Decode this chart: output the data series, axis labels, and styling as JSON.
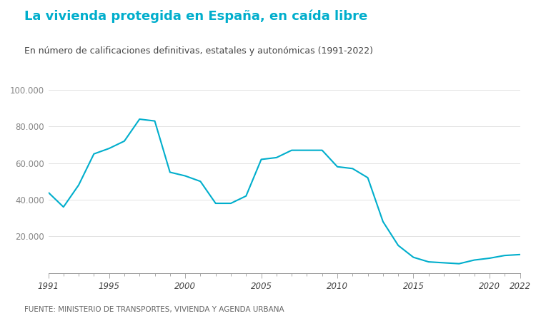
{
  "title": "La vivienda protegida en España, en caída libre",
  "subtitle": "En número de calificaciones definitivas, estatales y autonómicas (1991-2022)",
  "source": "FUENTE: MINISTERIO DE TRANSPORTES, VIVIENDA Y AGENDA URBANA",
  "title_color": "#00AECC",
  "subtitle_color": "#444444",
  "source_color": "#666666",
  "line_color": "#00AECC",
  "background_color": "#FFFFFF",
  "years": [
    1991,
    1992,
    1993,
    1994,
    1995,
    1996,
    1997,
    1998,
    1999,
    2000,
    2001,
    2002,
    2003,
    2004,
    2005,
    2006,
    2007,
    2008,
    2009,
    2010,
    2011,
    2012,
    2013,
    2014,
    2015,
    2016,
    2017,
    2018,
    2019,
    2020,
    2021,
    2022
  ],
  "values": [
    44000,
    36000,
    48000,
    65000,
    68000,
    72000,
    84000,
    83000,
    55000,
    53000,
    50000,
    38000,
    38000,
    42000,
    62000,
    63000,
    67000,
    67000,
    67000,
    58000,
    57000,
    52000,
    28000,
    15000,
    8500,
    6000,
    5500,
    5000,
    7000,
    8000,
    9500,
    10000
  ],
  "ylim": [
    0,
    100000
  ],
  "yticks": [
    20000,
    40000,
    60000,
    80000,
    100000
  ],
  "xticks": [
    1991,
    1995,
    2000,
    2005,
    2010,
    2015,
    2020,
    2022
  ],
  "line_width": 1.5,
  "title_fontsize": 13,
  "subtitle_fontsize": 9,
  "source_fontsize": 7.5,
  "tick_labelsize": 8.5
}
